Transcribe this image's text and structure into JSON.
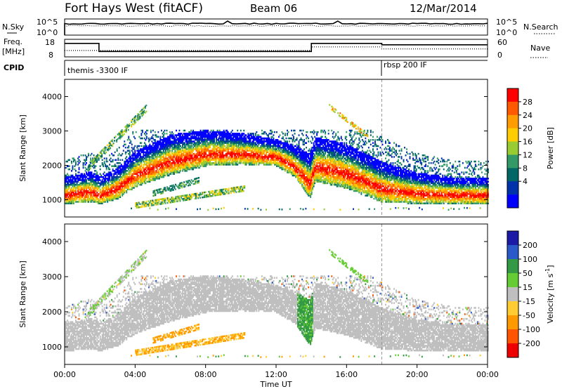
{
  "header": {
    "title": "Fort Hays West (fitACF)",
    "beam": "Beam 06",
    "date": "12/Mar/2014"
  },
  "panels": {
    "nsky": {
      "label": "N.Sky",
      "right_label": "N.Search",
      "ticks_left": [
        "10^5",
        "10^0"
      ],
      "ticks_right": [
        "10^5",
        "10^0"
      ]
    },
    "freq": {
      "label_line1": "Freq.",
      "label_line2": "[MHz]",
      "right_label": "Nave",
      "ticks_left": [
        "18",
        "8"
      ],
      "ticks_right": [
        "60",
        "0"
      ]
    },
    "cpid": {
      "label": "CPID",
      "segments": [
        {
          "name": "themis -3300 IF",
          "start_hour": 0,
          "end_hour": 18
        },
        {
          "name": "rbsp 200 IF",
          "start_hour": 18,
          "end_hour": 24
        }
      ]
    }
  },
  "axes": {
    "x_ticks": [
      "00:00",
      "04:00",
      "08:00",
      "12:00",
      "16:00",
      "20:00",
      "00:00"
    ],
    "x_tick_hours": [
      0,
      4,
      8,
      12,
      16,
      20,
      24
    ],
    "xlabel": "Time UT",
    "ylabel": "Slant Range [km]",
    "y_ticks": [
      "1000",
      "2000",
      "3000",
      "4000"
    ],
    "y_tick_values": [
      1000,
      2000,
      3000,
      4000
    ],
    "ylim": [
      500,
      4500
    ]
  },
  "colorbars": {
    "power": {
      "label": "Power [dB]",
      "ticks": [
        "28",
        "24",
        "20",
        "16",
        "12",
        "8",
        "4"
      ],
      "colors": [
        "#ff0000",
        "#ff5a00",
        "#ff9c00",
        "#ffcc00",
        "#99cc33",
        "#339966",
        "#006666",
        "#0033aa",
        "#0000ff"
      ]
    },
    "velocity": {
      "label": "Velocity [m s",
      "label_sup": "-1",
      "label_end": "]",
      "ticks": [
        "200",
        "100",
        "50",
        "15",
        "-15",
        "-50",
        "-100",
        "-200"
      ],
      "colors": [
        "#1a1aa6",
        "#2a59c9",
        "#339944",
        "#66cc33",
        "#bfbfbf",
        "#ffcc33",
        "#ff9900",
        "#ff5500",
        "#ee0000"
      ]
    }
  },
  "chart_data": {
    "type": "heatmap",
    "title": "Fort Hays West (fitACF)",
    "x_range_hours": [
      0,
      24
    ],
    "ylim": [
      500,
      4500
    ],
    "xlabel": "Time UT",
    "ylabel": "Slant Range [km]",
    "nsky": {
      "level": "10^5 (saturated)"
    },
    "frequency_mhz": [
      {
        "start_hour": 0,
        "end_hour": 1.95,
        "value": 16.5
      },
      {
        "start_hour": 1.95,
        "end_hour": 14.0,
        "value": 10.5
      },
      {
        "start_hour": 14.0,
        "end_hour": 18.0,
        "value": 16.5
      },
      {
        "start_hour": 18.0,
        "end_hour": 24.0,
        "value": 15.5
      }
    ],
    "nave": [
      {
        "start_hour": 0,
        "end_hour": 14.0,
        "value": 22
      },
      {
        "start_hour": 14.0,
        "end_hour": 18.0,
        "value": 36
      },
      {
        "start_hour": 18.0,
        "end_hour": 24.0,
        "value": 28
      }
    ],
    "main_echo_band_km": [
      {
        "hour": 0,
        "center": 1150,
        "width": 300
      },
      {
        "hour": 1.5,
        "center": 1250,
        "width": 350
      },
      {
        "hour": 2.0,
        "center": 1150,
        "width": 300
      },
      {
        "hour": 3.0,
        "center": 1350,
        "width": 350
      },
      {
        "hour": 4.0,
        "center": 1750,
        "width": 400
      },
      {
        "hour": 6.0,
        "center": 2150,
        "width": 450
      },
      {
        "hour": 8.0,
        "center": 2350,
        "width": 400
      },
      {
        "hour": 10.0,
        "center": 2350,
        "width": 350
      },
      {
        "hour": 12.0,
        "center": 2250,
        "width": 300
      },
      {
        "hour": 13.0,
        "center": 2000,
        "width": 350
      },
      {
        "hour": 13.9,
        "center": 1500,
        "width": 500
      },
      {
        "hour": 14.2,
        "center": 2000,
        "width": 500
      },
      {
        "hour": 16.0,
        "center": 1800,
        "width": 500
      },
      {
        "hour": 18.0,
        "center": 1350,
        "width": 450
      },
      {
        "hour": 20.0,
        "center": 1200,
        "width": 350
      },
      {
        "hour": 22.0,
        "center": 1150,
        "width": 300
      },
      {
        "hour": 24.0,
        "center": 1150,
        "width": 300
      }
    ],
    "power_db_range": [
      4,
      30
    ],
    "velocity_ms_range": [
      -200,
      200
    ]
  }
}
